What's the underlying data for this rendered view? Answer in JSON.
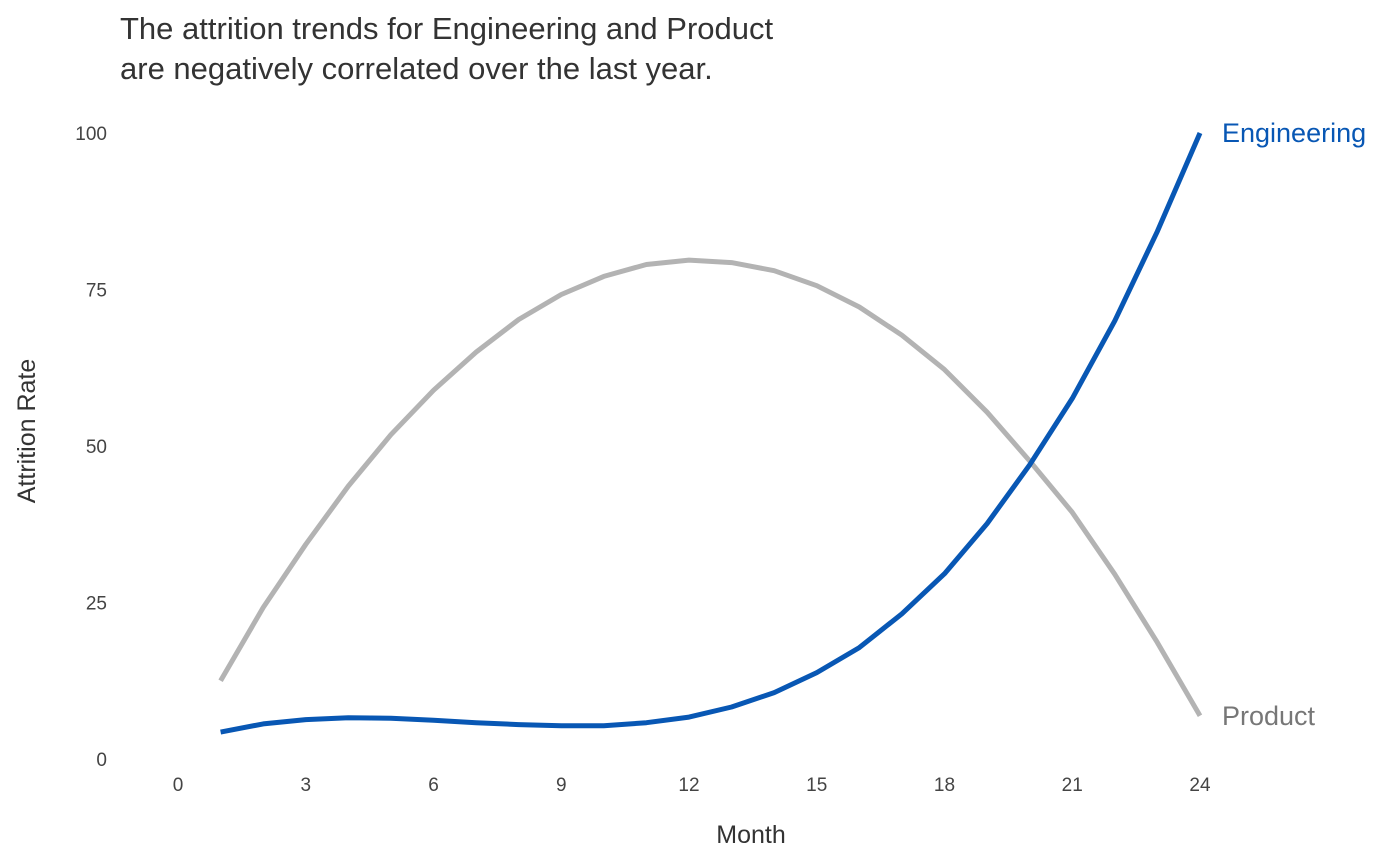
{
  "chart_data": {
    "type": "line",
    "title_lines": [
      "The attrition trends for Engineering and Product",
      "are negatively correlated over the last year."
    ],
    "xlabel": "Month",
    "ylabel": "Attrition Rate",
    "xlim": [
      0,
      24
    ],
    "ylim": [
      0,
      100
    ],
    "xticks": [
      0,
      3,
      6,
      9,
      12,
      15,
      18,
      21,
      24
    ],
    "yticks": [
      0,
      25,
      50,
      75,
      100
    ],
    "grid": false,
    "legend": "direct labels at line ends (right)",
    "x": [
      1,
      2,
      3,
      4,
      5,
      6,
      7,
      8,
      9,
      10,
      11,
      12,
      13,
      14,
      15,
      16,
      17,
      18,
      19,
      20,
      21,
      22,
      23,
      24
    ],
    "series": [
      {
        "name": "Product",
        "color": "#b3b3b3",
        "label_color": "#777777",
        "values": [
          12.5,
          24.2,
          34.3,
          43.6,
          51.8,
          58.9,
          65.0,
          70.2,
          74.2,
          77.1,
          79.0,
          79.7,
          79.3,
          78.0,
          75.6,
          72.2,
          67.7,
          62.2,
          55.4,
          47.6,
          39.4,
          29.5,
          18.6,
          6.9
        ]
      },
      {
        "name": "Engineering",
        "color": "#0857b4",
        "label_color": "#0857b4",
        "values": [
          4.3,
          5.6,
          6.3,
          6.6,
          6.5,
          6.2,
          5.8,
          5.5,
          5.3,
          5.3,
          5.8,
          6.7,
          8.3,
          10.6,
          13.8,
          17.8,
          23.2,
          29.6,
          37.6,
          47.0,
          57.6,
          70.0,
          84.3,
          100.0
        ]
      }
    ]
  }
}
